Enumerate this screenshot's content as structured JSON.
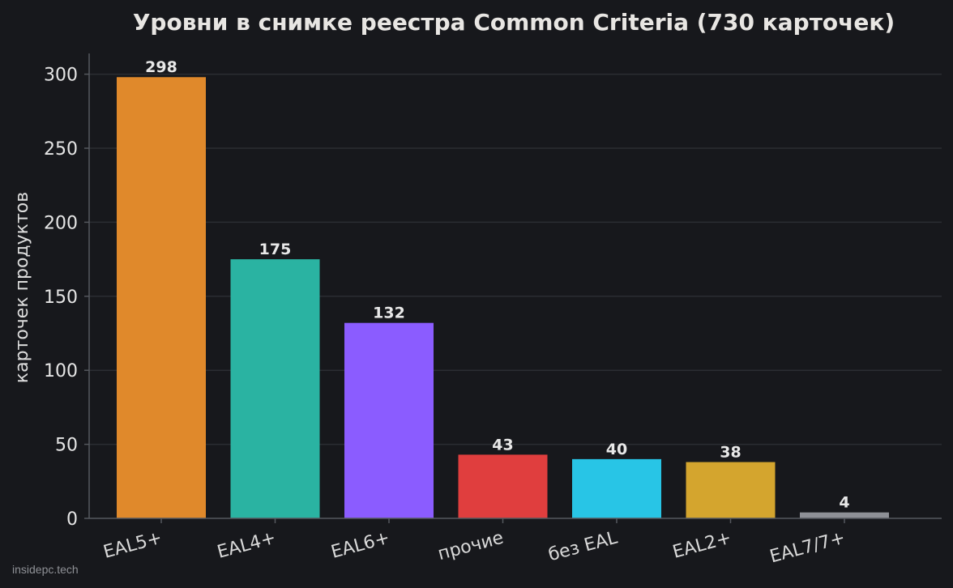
{
  "chart_data": {
    "type": "bar",
    "title": "Уровни в снимке реестра Common Criteria (730 карточек)",
    "xlabel": "",
    "ylabel": "карточек продуктов",
    "categories": [
      "EAL5+",
      "EAL4+",
      "EAL6+",
      "прочие",
      "без EAL",
      "EAL2+",
      "EAL7/7+"
    ],
    "values": [
      298,
      175,
      132,
      43,
      40,
      38,
      4
    ],
    "colors": [
      "#e0892b",
      "#2ab3a2",
      "#8b5cff",
      "#e03e3e",
      "#28c5e6",
      "#d4a52e",
      "#8e9096"
    ],
    "ylim": [
      0,
      314
    ],
    "yticks": [
      0,
      50,
      100,
      150,
      200,
      250,
      300
    ],
    "grid": true,
    "legend": "none"
  },
  "watermark": "insidepc.tech",
  "theme": {
    "background": "#17181c",
    "grid_color": "#2b2d32",
    "axis_color": "#55585e"
  }
}
